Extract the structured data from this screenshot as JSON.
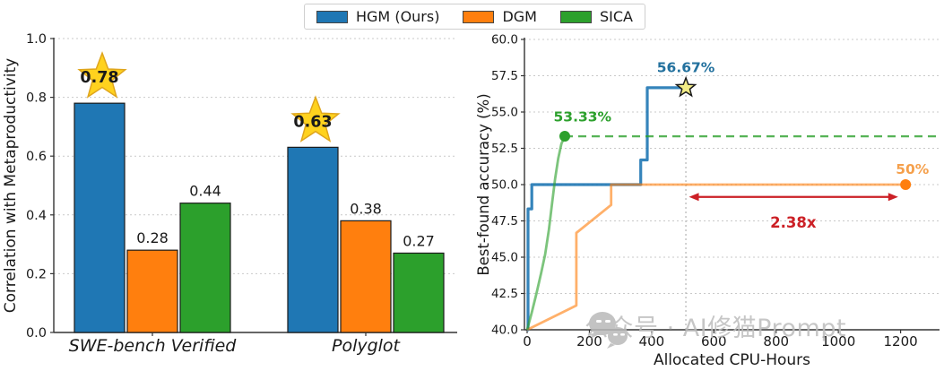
{
  "figure": {
    "legend": {
      "items": [
        {
          "label": "HGM (Ours)",
          "color": "#1f77b4"
        },
        {
          "label": "DGM",
          "color": "#ff7f0e"
        },
        {
          "label": "SICA",
          "color": "#2ca02c"
        }
      ]
    },
    "watermark": {
      "text": "公众号 · AI修猫Prompt",
      "icon": "wechat-logo",
      "color": "#bdbdbd"
    }
  },
  "chart_data": [
    {
      "type": "bar",
      "title": "",
      "xlabel": "",
      "ylabel": "Correlation with Metaproductivity",
      "categories": [
        "SWE-bench Verified",
        "Polyglot"
      ],
      "series": [
        {
          "name": "HGM (Ours)",
          "color": "#1f77b4",
          "values": [
            0.78,
            0.63
          ],
          "value_labels": [
            "0.78",
            "0.63"
          ],
          "starred": true,
          "star_fill": "#ffd21e",
          "star_edge": "#dfa51d"
        },
        {
          "name": "DGM",
          "color": "#ff7f0e",
          "values": [
            0.28,
            0.38
          ],
          "value_labels": [
            "0.28",
            "0.38"
          ]
        },
        {
          "name": "SICA",
          "color": "#2ca02c",
          "values": [
            0.44,
            0.27
          ],
          "value_labels": [
            "0.44",
            "0.27"
          ]
        }
      ],
      "ylim": [
        0.0,
        1.0
      ],
      "yticks": [
        "0.0",
        "0.2",
        "0.4",
        "0.6",
        "0.8",
        "1.0"
      ],
      "grid": "horizontal dashed",
      "legend_position": "top-center (shared)"
    },
    {
      "type": "line",
      "title": "",
      "xlabel": "Allocated CPU-Hours",
      "ylabel": "Best-found accuracy (%)",
      "xlim": [
        0,
        1325
      ],
      "ylim": [
        40.0,
        60.0
      ],
      "xticks": [
        "0",
        "200",
        "400",
        "600",
        "800",
        "1000",
        "1200"
      ],
      "yticks": [
        "40.0",
        "42.5",
        "45.0",
        "47.5",
        "50.0",
        "52.5",
        "55.0",
        "57.5",
        "60.0"
      ],
      "grid": "horizontal dashed",
      "series": [
        {
          "name": "HGM (Ours)",
          "color": "#1f77b4",
          "opacity": 0.9,
          "width": 3.2,
          "points": [
            [
              0,
              40
            ],
            [
              3,
              40
            ],
            [
              3,
              48.33
            ],
            [
              15,
              48.33
            ],
            [
              15,
              50
            ],
            [
              365,
              50
            ],
            [
              365,
              51.7
            ],
            [
              386,
              51.7
            ],
            [
              386,
              56.67
            ],
            [
              510,
              56.67
            ]
          ],
          "marker": {
            "shape": "star",
            "x": 510,
            "y": 56.67,
            "fill": "#f2ec86",
            "edge": "#1a1a1a"
          }
        },
        {
          "name": "DGM",
          "color": "#ff7f0e",
          "opacity": 0.62,
          "width": 2.8,
          "points": [
            [
              0,
              40
            ],
            [
              158,
              41.67
            ],
            [
              158,
              46.67
            ],
            [
              270,
              48.6
            ],
            [
              270,
              50
            ],
            [
              1216,
              50
            ]
          ],
          "marker": {
            "shape": "dot",
            "x": 1216,
            "y": 50,
            "fill": "#ff7f0e"
          }
        },
        {
          "name": "SICA",
          "color": "#2ca02c",
          "opacity": 0.62,
          "width": 2.8,
          "points": [
            [
              0,
              40
            ],
            [
              15,
              41.2
            ],
            [
              30,
              42.5
            ],
            [
              45,
              43.9
            ],
            [
              58,
              45.2
            ],
            [
              70,
              46.9
            ],
            [
              80,
              48.7
            ],
            [
              90,
              50.4
            ],
            [
              100,
              51.8
            ],
            [
              110,
              52.8
            ],
            [
              121,
              53.33
            ]
          ],
          "marker": {
            "shape": "dot",
            "x": 121,
            "y": 53.33,
            "fill": "#2ca02c"
          }
        },
        {
          "name": "SICA plateau",
          "color": "#2ca02c",
          "opacity": 0.8,
          "width": 2.2,
          "dash": "9,6",
          "points": [
            [
              121,
              53.33
            ],
            [
              1325,
              53.33
            ]
          ]
        }
      ],
      "annotations": [
        {
          "text": "56.67%",
          "x": 510,
          "y": 57.75,
          "color": "#23719e",
          "size": 15.5,
          "bold": true
        },
        {
          "text": "53.33%",
          "x": 178,
          "y": 54.35,
          "color": "#2ca02c",
          "size": 15.5,
          "bold": true
        },
        {
          "text": "50%",
          "x": 1238,
          "y": 50.75,
          "color": "#f5a04c",
          "size": 15.5,
          "bold": true
        },
        {
          "text": "2.38x",
          "x": 855,
          "y": 47.05,
          "color": "#cc2026",
          "size": 16.5,
          "bold": true
        }
      ],
      "speedup_arrow": {
        "x1": 520,
        "x2": 1192,
        "y": 49.15,
        "color": "#cc2026"
      },
      "dropline": {
        "x": 510,
        "y1": 40,
        "y2": 56.67
      }
    }
  ]
}
